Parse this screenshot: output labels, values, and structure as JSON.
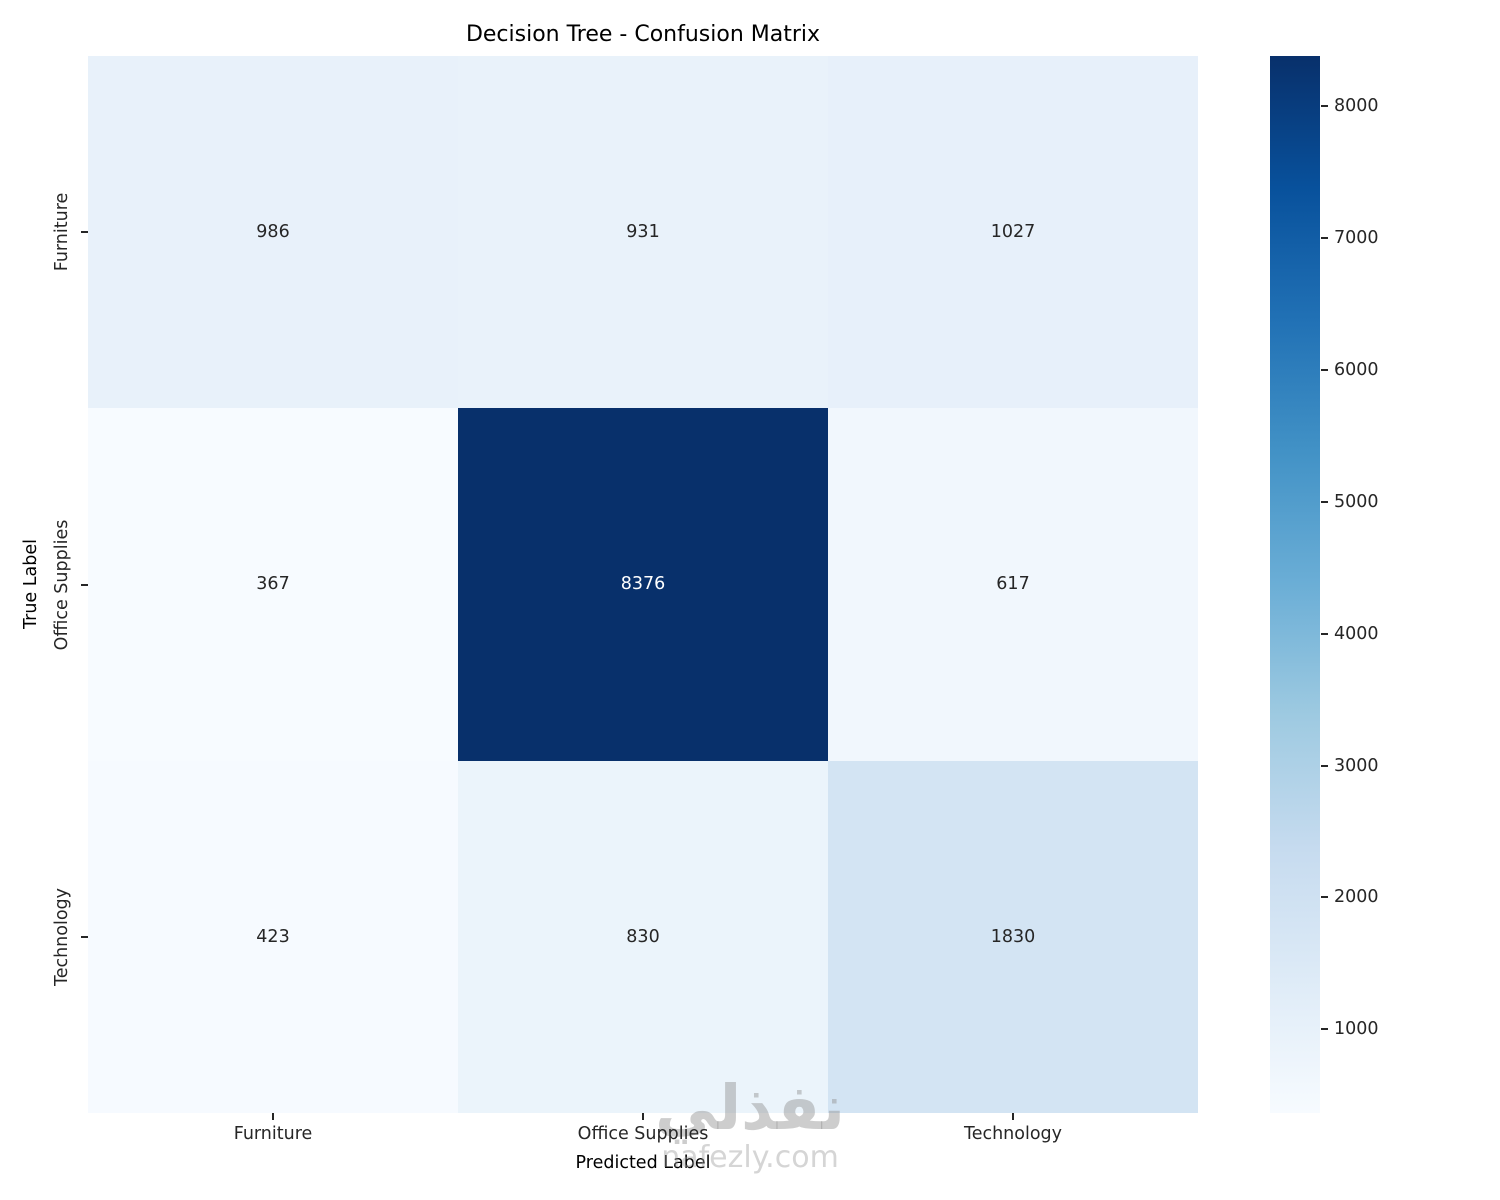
{
  "chart_data": {
    "type": "heatmap",
    "title": "Decision Tree - Confusion Matrix",
    "xlabel": "Predicted Label",
    "ylabel": "True Label",
    "x_categories": [
      "Furniture",
      "Office Supplies",
      "Technology"
    ],
    "y_categories": [
      "Furniture",
      "Office Supplies",
      "Technology"
    ],
    "values": [
      [
        986,
        931,
        1027
      ],
      [
        367,
        8376,
        617
      ],
      [
        423,
        830,
        1830
      ]
    ],
    "vmin": 367,
    "vmax": 8376,
    "colormap": "Blues",
    "color_min": "#f7fbff",
    "color_max": "#08306b",
    "annotation_color_light_cells": "#262626",
    "annotation_color_dark_cells": "#ffffff",
    "colorbar_ticks": [
      1000,
      2000,
      3000,
      4000,
      5000,
      6000,
      7000,
      8000
    ],
    "colorbar_position": "right",
    "grid": false
  },
  "watermark": {
    "arabic": "نفذلي",
    "site": "nafezly.com"
  }
}
